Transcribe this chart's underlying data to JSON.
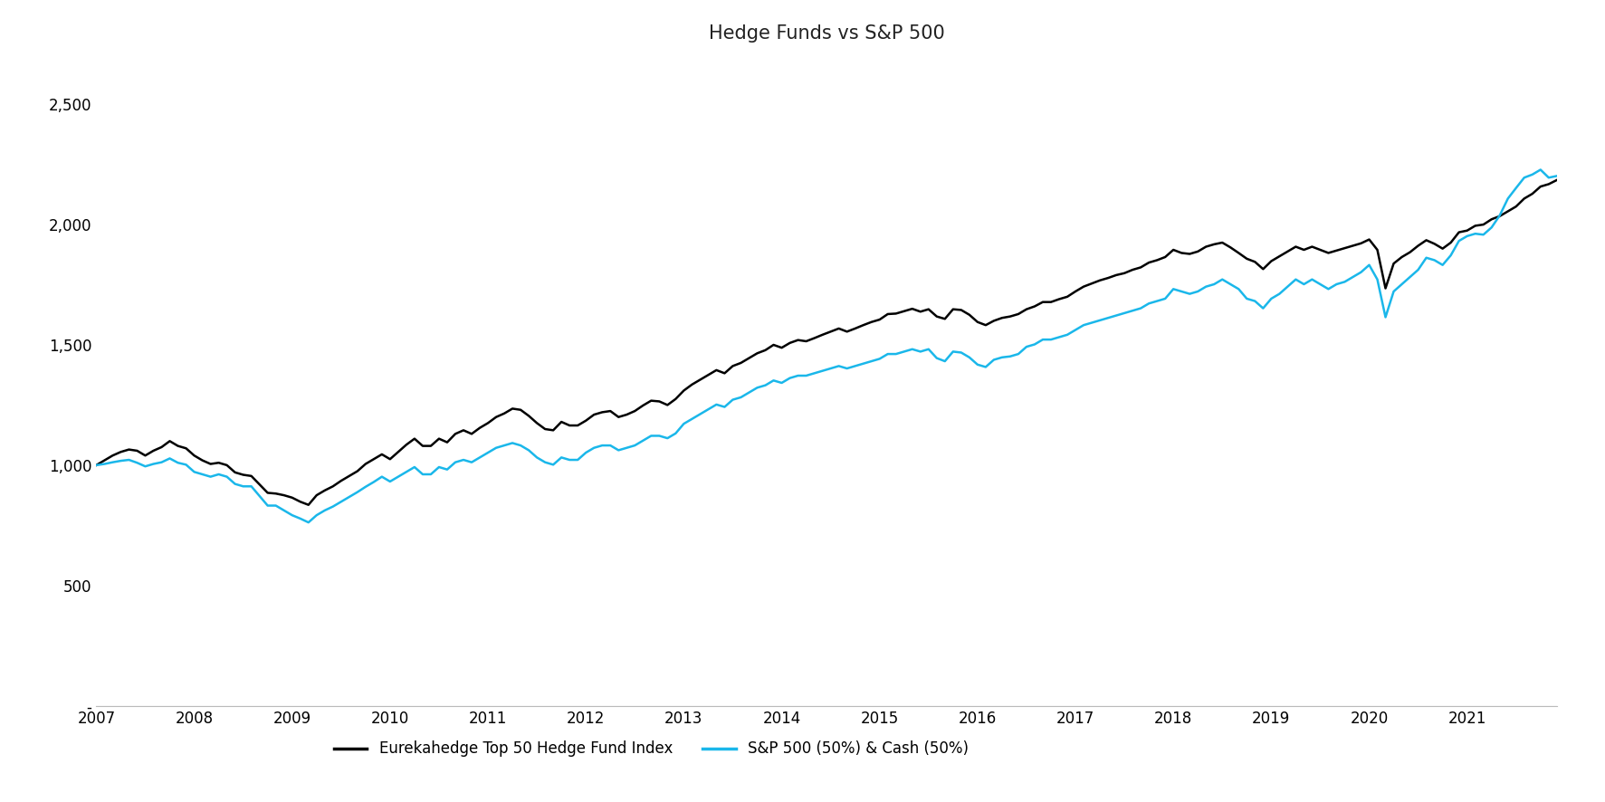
{
  "title": "Hedge Funds vs S&P 500",
  "hedge_fund_label": "Eurekahedge Top 50 Hedge Fund Index",
  "sp500_label": "S&P 500 (50%) & Cash (50%)",
  "hedge_fund_color": "#000000",
  "sp500_color": "#1ab7ea",
  "hedge_fund_linewidth": 1.8,
  "sp500_linewidth": 1.8,
  "background_color": "#ffffff",
  "ylim": [
    0,
    2700
  ],
  "yticks": [
    0,
    500,
    1000,
    1500,
    2000,
    2500
  ],
  "ytick_labels": [
    "-",
    "500",
    "1,000",
    "1,500",
    "2,000",
    "2,500"
  ],
  "title_fontsize": 15,
  "tick_fontsize": 12,
  "legend_fontsize": 12,
  "hedge_fund_values": [
    1000,
    1020,
    1040,
    1055,
    1065,
    1060,
    1040,
    1060,
    1075,
    1100,
    1080,
    1070,
    1040,
    1020,
    1005,
    1010,
    1000,
    970,
    960,
    955,
    920,
    885,
    882,
    875,
    865,
    848,
    835,
    875,
    895,
    912,
    935,
    955,
    975,
    1005,
    1025,
    1045,
    1025,
    1055,
    1085,
    1110,
    1080,
    1080,
    1110,
    1095,
    1130,
    1145,
    1130,
    1155,
    1175,
    1200,
    1215,
    1235,
    1230,
    1205,
    1175,
    1150,
    1145,
    1180,
    1165,
    1165,
    1185,
    1210,
    1220,
    1225,
    1200,
    1210,
    1225,
    1248,
    1268,
    1265,
    1250,
    1275,
    1310,
    1335,
    1355,
    1375,
    1395,
    1382,
    1412,
    1425,
    1445,
    1465,
    1478,
    1500,
    1488,
    1508,
    1520,
    1515,
    1528,
    1542,
    1555,
    1568,
    1555,
    1568,
    1582,
    1595,
    1605,
    1628,
    1630,
    1640,
    1650,
    1638,
    1648,
    1618,
    1608,
    1648,
    1645,
    1625,
    1595,
    1582,
    1600,
    1612,
    1618,
    1628,
    1648,
    1660,
    1678,
    1678,
    1690,
    1700,
    1722,
    1742,
    1755,
    1768,
    1778,
    1790,
    1798,
    1812,
    1822,
    1842,
    1852,
    1865,
    1895,
    1882,
    1878,
    1888,
    1908,
    1918,
    1925,
    1905,
    1882,
    1858,
    1845,
    1815,
    1848,
    1868,
    1888,
    1908,
    1895,
    1908,
    1895,
    1882,
    1892,
    1902,
    1912,
    1922,
    1938,
    1895,
    1735,
    1838,
    1865,
    1885,
    1912,
    1935,
    1920,
    1900,
    1925,
    1968,
    1975,
    1995,
    2000,
    2022,
    2035,
    2055,
    2075,
    2108,
    2128,
    2158,
    2168,
    2185
  ],
  "sp500_values": [
    1000,
    1005,
    1012,
    1018,
    1022,
    1010,
    995,
    1005,
    1012,
    1028,
    1010,
    1002,
    972,
    962,
    952,
    962,
    952,
    922,
    912,
    912,
    872,
    832,
    832,
    812,
    792,
    778,
    762,
    792,
    812,
    828,
    848,
    868,
    888,
    910,
    930,
    952,
    932,
    952,
    972,
    992,
    962,
    962,
    992,
    982,
    1012,
    1022,
    1012,
    1032,
    1052,
    1072,
    1082,
    1092,
    1082,
    1062,
    1032,
    1012,
    1002,
    1032,
    1022,
    1022,
    1052,
    1072,
    1082,
    1082,
    1062,
    1072,
    1082,
    1102,
    1122,
    1122,
    1112,
    1132,
    1172,
    1192,
    1212,
    1232,
    1252,
    1242,
    1272,
    1282,
    1302,
    1322,
    1332,
    1352,
    1342,
    1362,
    1372,
    1372,
    1382,
    1392,
    1402,
    1412,
    1402,
    1412,
    1422,
    1432,
    1442,
    1462,
    1462,
    1472,
    1482,
    1472,
    1482,
    1445,
    1432,
    1472,
    1468,
    1448,
    1418,
    1408,
    1438,
    1448,
    1452,
    1462,
    1492,
    1502,
    1522,
    1522,
    1532,
    1542,
    1562,
    1582,
    1592,
    1602,
    1612,
    1622,
    1632,
    1642,
    1652,
    1672,
    1682,
    1692,
    1732,
    1722,
    1712,
    1722,
    1742,
    1752,
    1772,
    1752,
    1732,
    1692,
    1682,
    1652,
    1692,
    1712,
    1742,
    1772,
    1752,
    1772,
    1752,
    1732,
    1752,
    1762,
    1782,
    1802,
    1832,
    1772,
    1615,
    1722,
    1752,
    1782,
    1812,
    1862,
    1852,
    1832,
    1872,
    1932,
    1952,
    1962,
    1958,
    1988,
    2038,
    2108,
    2152,
    2195,
    2208,
    2228,
    2195,
    2202
  ],
  "xtick_years": [
    "2007",
    "2008",
    "2009",
    "2010",
    "2011",
    "2012",
    "2013",
    "2014",
    "2015",
    "2016",
    "2017",
    "2018",
    "2019",
    "2020",
    "2021"
  ],
  "xtick_positions": [
    0,
    12,
    24,
    36,
    48,
    60,
    72,
    84,
    96,
    108,
    120,
    132,
    144,
    156,
    168
  ]
}
